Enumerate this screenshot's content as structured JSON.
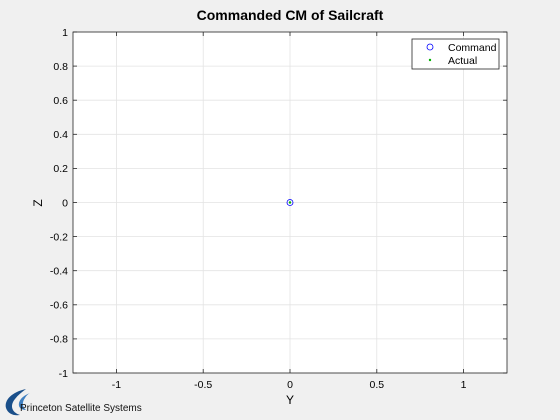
{
  "chart_data": {
    "type": "scatter",
    "title": "Commanded CM of Sailcraft",
    "xlabel": "Y",
    "ylabel": "Z",
    "xlim": [
      -1.25,
      1.25
    ],
    "ylim": [
      -1,
      1
    ],
    "xticks": [
      -1,
      -0.5,
      0,
      0.5,
      1
    ],
    "xtick_labels": [
      "-1",
      "-0.5",
      "0",
      "0.5",
      "1"
    ],
    "yticks": [
      1,
      0.8,
      0.6,
      0.4,
      0.2,
      0,
      -0.2,
      -0.4,
      -0.6,
      -0.8,
      -1
    ],
    "ytick_labels": [
      "1",
      "0.8",
      "0.6",
      "0.4",
      "0.2",
      "0",
      "-0.2",
      "-0.4",
      "-0.6",
      "-0.8",
      "-1"
    ],
    "grid": true,
    "legend_position": "top-right",
    "series": [
      {
        "name": "Command",
        "marker": "circle-open",
        "color": "#0000ff",
        "x": [
          0
        ],
        "y": [
          0
        ]
      },
      {
        "name": "Actual",
        "marker": "dot",
        "color": "#00b000",
        "x": [
          0
        ],
        "y": [
          0
        ]
      }
    ]
  },
  "logo": {
    "text": "Princeton Satellite Systems",
    "color": "#1a4f8a"
  }
}
